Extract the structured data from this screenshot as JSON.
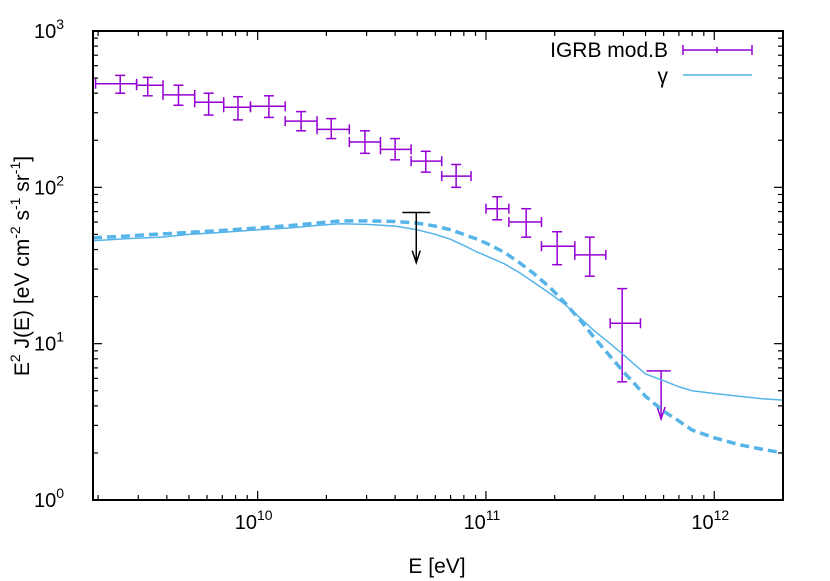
{
  "chart_data": {
    "type": "scatter",
    "x_scale": "log",
    "y_scale": "log",
    "xlim": [
      1900000000.0,
      2000000000000.0
    ],
    "ylim": [
      1,
      1000
    ],
    "xlabel": "E  [eV]",
    "ylabel_parts": {
      "main": "E",
      "exp": "2",
      "rest": " J(E)  [eV cm",
      "exp2": "-2",
      "mid": " s",
      "exp3": "-1",
      "mid2": " sr",
      "exp4": "-1",
      "end": "]"
    },
    "x_ticks": [
      {
        "value": 10000000000.0,
        "base": "10",
        "exp": "10"
      },
      {
        "value": 100000000000.0,
        "base": "10",
        "exp": "11"
      },
      {
        "value": 1000000000000.0,
        "base": "10",
        "exp": "12"
      }
    ],
    "y_ticks": [
      {
        "value": 1,
        "base": "10",
        "exp": "0"
      },
      {
        "value": 10,
        "base": "10",
        "exp": "1"
      },
      {
        "value": 100,
        "base": "10",
        "exp": "2"
      },
      {
        "value": 1000,
        "base": "10",
        "exp": "3"
      }
    ],
    "legend_position": "top-right",
    "series": [
      {
        "name": "IGRB mod.B",
        "kind": "errorbar",
        "color": "#9400d3",
        "points": [
          {
            "x": 2500000000.0,
            "y": 460,
            "xlo": 1950000000.0,
            "xhi": 2950000000.0,
            "ylo": 400,
            "yhi": 520
          },
          {
            "x": 3300000000.0,
            "y": 450,
            "xlo": 2950000000.0,
            "xhi": 3850000000.0,
            "ylo": 385,
            "yhi": 505
          },
          {
            "x": 4500000000.0,
            "y": 390,
            "xlo": 3850000000.0,
            "xhi": 5300000000.0,
            "ylo": 335,
            "yhi": 450
          },
          {
            "x": 6100000000.0,
            "y": 350,
            "xlo": 5300000000.0,
            "xhi": 7100000000.0,
            "ylo": 290,
            "yhi": 400
          },
          {
            "x": 8200000000.0,
            "y": 325,
            "xlo": 7100000000.0,
            "xhi": 9300000000.0,
            "ylo": 270,
            "yhi": 380
          },
          {
            "x": 11200000000.0,
            "y": 330,
            "xlo": 9300000000.0,
            "xhi": 13200000000.0,
            "ylo": 280,
            "yhi": 385
          },
          {
            "x": 15500000000.0,
            "y": 265,
            "xlo": 13200000000.0,
            "xhi": 18200000000.0,
            "ylo": 230,
            "yhi": 305
          },
          {
            "x": 21000000000.0,
            "y": 235,
            "xlo": 18200000000.0,
            "xhi": 25200000000.0,
            "ylo": 205,
            "yhi": 275
          },
          {
            "x": 29500000000.0,
            "y": 195,
            "xlo": 25200000000.0,
            "xhi": 34500000000.0,
            "ylo": 165,
            "yhi": 230
          },
          {
            "x": 40000000000.0,
            "y": 175,
            "xlo": 34500000000.0,
            "xhi": 47000000000.0,
            "ylo": 150,
            "yhi": 205
          },
          {
            "x": 54500000000.0,
            "y": 147,
            "xlo": 47000000000.0,
            "xhi": 64000000000.0,
            "ylo": 125,
            "yhi": 170
          },
          {
            "x": 74000000000.0,
            "y": 118,
            "xlo": 64000000000.0,
            "xhi": 86000000000.0,
            "ylo": 100,
            "yhi": 140
          },
          {
            "x": 112000000000.0,
            "y": 73,
            "xlo": 100000000000.0,
            "xhi": 126000000000.0,
            "ylo": 62,
            "yhi": 87
          },
          {
            "x": 150000000000.0,
            "y": 60,
            "xlo": 126000000000.0,
            "xhi": 175000000000.0,
            "ylo": 48,
            "yhi": 73
          },
          {
            "x": 205000000000.0,
            "y": 42,
            "xlo": 175000000000.0,
            "xhi": 245000000000.0,
            "ylo": 32,
            "yhi": 52
          },
          {
            "x": 285000000000.0,
            "y": 37,
            "xlo": 245000000000.0,
            "xhi": 335000000000.0,
            "ylo": 27,
            "yhi": 48
          },
          {
            "x": 395000000000.0,
            "y": 13.5,
            "xlo": 350000000000.0,
            "xhi": 475000000000.0,
            "ylo": 5.7,
            "yhi": 22.5
          }
        ],
        "upper_limit": {
          "x": 585000000000.0,
          "y": 6.7,
          "xlo": 505000000000.0,
          "xhi": 645000000000.0,
          "y_arrow_end": 3.3
        }
      },
      {
        "name": "γ",
        "kind": "line",
        "color": "#56b4e9",
        "points": [
          [
            1900000000.0,
            45.5
          ],
          [
            2700000000.0,
            47
          ],
          [
            3800000000.0,
            48
          ],
          [
            5000000000.0,
            50
          ],
          [
            7000000000.0,
            51.5
          ],
          [
            10000000000.0,
            53.5
          ],
          [
            14000000000.0,
            55
          ],
          [
            18000000000.0,
            57
          ],
          [
            23000000000.0,
            58.5
          ],
          [
            30000000000.0,
            58
          ],
          [
            40000000000.0,
            56.5
          ],
          [
            50000000000.0,
            53.5
          ],
          [
            60000000000.0,
            50
          ],
          [
            70000000000.0,
            46.5
          ],
          [
            80000000000.0,
            42.5
          ],
          [
            90000000000.0,
            39
          ],
          [
            100000000000.0,
            36.5
          ],
          [
            120000000000.0,
            32.5
          ],
          [
            140000000000.0,
            28.5
          ],
          [
            160000000000.0,
            25
          ],
          [
            190000000000.0,
            21
          ],
          [
            220000000000.0,
            18
          ],
          [
            260000000000.0,
            14.5
          ],
          [
            300000000000.0,
            12
          ],
          [
            350000000000.0,
            10
          ],
          [
            400000000000.0,
            8.5
          ],
          [
            450000000000.0,
            7.3
          ],
          [
            500000000000.0,
            6.4
          ],
          [
            600000000000.0,
            5.8
          ],
          [
            700000000000.0,
            5.3
          ],
          [
            800000000000.0,
            5.0
          ],
          [
            1000000000000.0,
            4.8
          ],
          [
            1300000000000.0,
            4.6
          ],
          [
            1600000000000.0,
            4.45
          ],
          [
            2000000000000.0,
            4.35
          ]
        ]
      },
      {
        "name": "",
        "kind": "dashed-line",
        "color": "#56b4e9",
        "points": [
          [
            1900000000.0,
            47.5
          ],
          [
            2500000000.0,
            48.5
          ],
          [
            3500000000.0,
            50
          ],
          [
            5000000000.0,
            51.5
          ],
          [
            7000000000.0,
            53
          ],
          [
            10000000000.0,
            55
          ],
          [
            14000000000.0,
            57
          ],
          [
            18000000000.0,
            59
          ],
          [
            23000000000.0,
            61
          ],
          [
            30000000000.0,
            61
          ],
          [
            40000000000.0,
            60.5
          ],
          [
            50000000000.0,
            59
          ],
          [
            60000000000.0,
            56.5
          ],
          [
            70000000000.0,
            53.5
          ],
          [
            80000000000.0,
            50
          ],
          [
            90000000000.0,
            47
          ],
          [
            100000000000.0,
            44
          ],
          [
            120000000000.0,
            38.5
          ],
          [
            140000000000.0,
            33
          ],
          [
            160000000000.0,
            28.5
          ],
          [
            190000000000.0,
            23
          ],
          [
            220000000000.0,
            18.5
          ],
          [
            260000000000.0,
            14
          ],
          [
            300000000000.0,
            10.8
          ],
          [
            350000000000.0,
            8.3
          ],
          [
            400000000000.0,
            6.6
          ],
          [
            450000000000.0,
            5.5
          ],
          [
            500000000000.0,
            4.6
          ],
          [
            600000000000.0,
            3.7
          ],
          [
            700000000000.0,
            3.2
          ],
          [
            800000000000.0,
            2.8
          ],
          [
            1000000000000.0,
            2.5
          ],
          [
            1300000000000.0,
            2.25
          ],
          [
            1600000000000.0,
            2.12
          ],
          [
            2000000000000.0,
            2.0
          ]
        ]
      },
      {
        "name": "",
        "kind": "upper-limit",
        "color": "#000000",
        "upper_limit": {
          "x": 49500000000.0,
          "y": 69,
          "xlo": 43000000000.0,
          "xhi": 57000000000.0,
          "y_arrow_end": 33
        }
      }
    ]
  }
}
